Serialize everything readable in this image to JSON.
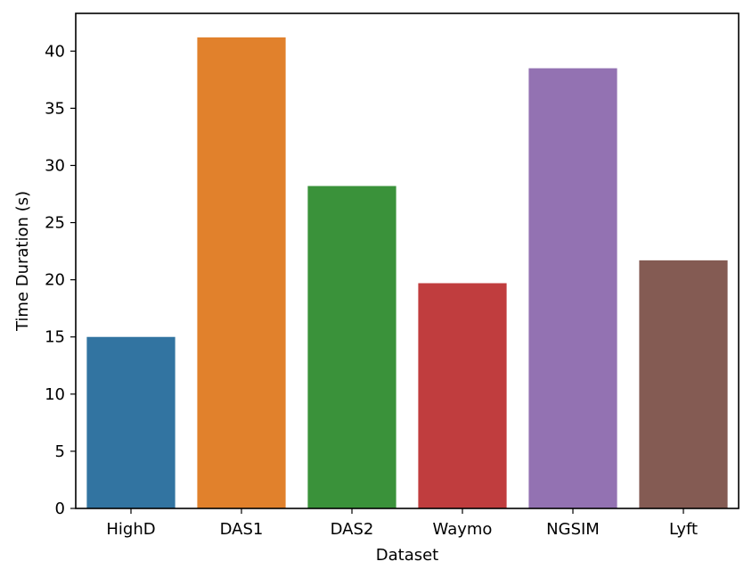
{
  "chart_data": {
    "type": "bar",
    "title": "",
    "xlabel": "Dataset",
    "ylabel": "Time Duration (s)",
    "categories": [
      "HighD",
      "DAS1",
      "DAS2",
      "Waymo",
      "NGSIM",
      "Lyft"
    ],
    "values": [
      15.0,
      41.2,
      28.2,
      19.7,
      38.5,
      21.7
    ],
    "colors": [
      "#3274a1",
      "#e1812c",
      "#3a923a",
      "#c03d3e",
      "#9372b2",
      "#845b53"
    ],
    "ylim": [
      0,
      43.3
    ],
    "yticks": [
      0,
      5,
      10,
      15,
      20,
      25,
      30,
      35,
      40
    ],
    "grid": false,
    "legend": "none"
  }
}
